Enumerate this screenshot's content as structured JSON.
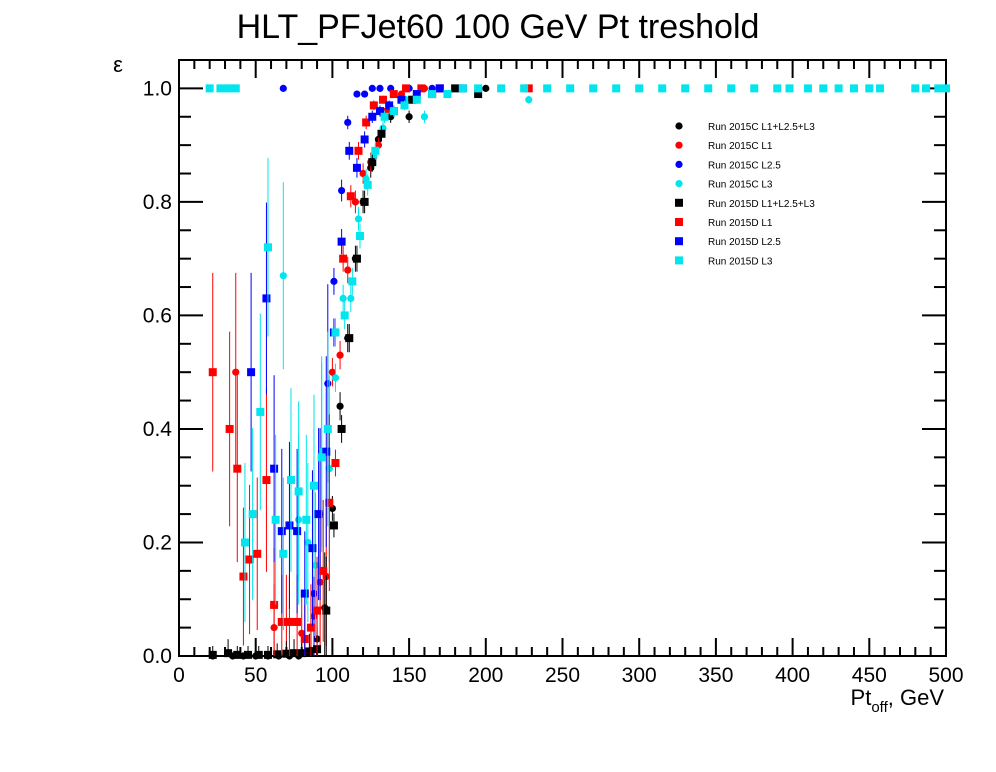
{
  "chart_data": {
    "type": "scatter",
    "title": "HLT_PFJet60 100 GeV Pt treshold",
    "xlabel": {
      "main": "Pt",
      "sub": "off",
      "rest": ", GeV"
    },
    "ylabel": "ε",
    "xlim": [
      0,
      500
    ],
    "ylim": [
      0,
      1.05
    ],
    "xticks": [
      0,
      50,
      100,
      150,
      200,
      250,
      300,
      350,
      400,
      450,
      500
    ],
    "yticks": [
      0,
      0.2,
      0.4,
      0.6,
      0.8,
      1.0
    ],
    "xtick_labels": [
      "0",
      "50",
      "100",
      "150",
      "200",
      "250",
      "300",
      "350",
      "400",
      "450",
      "500"
    ],
    "ytick_labels": [
      "0.0",
      "0.2",
      "0.4",
      "0.6",
      "0.8",
      "1.0"
    ],
    "grid": false,
    "legend_position": "top-right",
    "series": [
      {
        "name": "Run 2015C L1+L2.5+L3",
        "color": "#000000",
        "marker": "circle",
        "points": [
          [
            22,
            0.0
          ],
          [
            35,
            0.0
          ],
          [
            42,
            0.0
          ],
          [
            50,
            0.0
          ],
          [
            58,
            0.0
          ],
          [
            65,
            0.0
          ],
          [
            72,
            0.0
          ],
          [
            78,
            0.0
          ],
          [
            82,
            0.005
          ],
          [
            86,
            0.01
          ],
          [
            90,
            0.03
          ],
          [
            95,
            0.085
          ],
          [
            100,
            0.26
          ],
          [
            105,
            0.44
          ],
          [
            110,
            0.56
          ],
          [
            115,
            0.7
          ],
          [
            120,
            0.8
          ],
          [
            125,
            0.86
          ],
          [
            130,
            0.91
          ],
          [
            138,
            0.95
          ],
          [
            150,
            0.95
          ],
          [
            165,
            0.99
          ],
          [
            180,
            1.0
          ],
          [
            200,
            1.0
          ]
        ]
      },
      {
        "name": "Run 2015C L1",
        "color": "#ff0000",
        "marker": "circle",
        "points": [
          [
            37,
            0.5
          ],
          [
            62,
            0.05
          ],
          [
            70,
            0.06
          ],
          [
            80,
            0.04
          ],
          [
            88,
            0.07
          ],
          [
            92,
            0.13
          ],
          [
            96,
            0.14
          ],
          [
            100,
            0.5
          ],
          [
            105,
            0.53
          ],
          [
            110,
            0.68
          ],
          [
            115,
            0.8
          ],
          [
            120,
            0.85
          ],
          [
            125,
            0.87
          ],
          [
            130,
            0.9
          ],
          [
            135,
            0.96
          ],
          [
            145,
            0.99
          ],
          [
            160,
            1.0
          ],
          [
            180,
            1.0
          ]
        ]
      },
      {
        "name": "Run 2015C L2.5",
        "color": "#0000ff",
        "marker": "circle",
        "points": [
          [
            68,
            1.0
          ],
          [
            88,
            0.11
          ],
          [
            92,
            0.25
          ],
          [
            97,
            0.48
          ],
          [
            101,
            0.66
          ],
          [
            106,
            0.82
          ],
          [
            110,
            0.94
          ],
          [
            116,
            0.99
          ],
          [
            121,
            0.99
          ],
          [
            126,
            1.0
          ],
          [
            131,
            1.0
          ],
          [
            138,
            1.0
          ],
          [
            150,
            1.0
          ],
          [
            165,
            1.0
          ]
        ]
      },
      {
        "name": "Run 2015C L3",
        "color": "#00e5ee",
        "marker": "circle",
        "points": [
          [
            68,
            0.67
          ],
          [
            78,
            0.24
          ],
          [
            84,
            0.2
          ],
          [
            89,
            0.16
          ],
          [
            93,
            0.36
          ],
          [
            98,
            0.33
          ],
          [
            102,
            0.49
          ],
          [
            107,
            0.63
          ],
          [
            112,
            0.63
          ],
          [
            117,
            0.77
          ],
          [
            122,
            0.84
          ],
          [
            127,
            0.88
          ],
          [
            133,
            0.93
          ],
          [
            140,
            0.96
          ],
          [
            148,
            0.98
          ],
          [
            160,
            0.95
          ],
          [
            180,
            1.0
          ],
          [
            228,
            0.98
          ]
        ]
      },
      {
        "name": "Run 2015D L1+L2.5+L3",
        "color": "#000000",
        "marker": "square",
        "points": [
          [
            22,
            0.002
          ],
          [
            32,
            0.005
          ],
          [
            38,
            0.002
          ],
          [
            45,
            0.002
          ],
          [
            52,
            0.002
          ],
          [
            58,
            0.002
          ],
          [
            64,
            0.003
          ],
          [
            70,
            0.004
          ],
          [
            75,
            0.005
          ],
          [
            80,
            0.005
          ],
          [
            85,
            0.008
          ],
          [
            90,
            0.012
          ],
          [
            96,
            0.08
          ],
          [
            101,
            0.23
          ],
          [
            106,
            0.4
          ],
          [
            111,
            0.56
          ],
          [
            116,
            0.7
          ],
          [
            121,
            0.8
          ],
          [
            126,
            0.87
          ],
          [
            132,
            0.92
          ],
          [
            140,
            0.96
          ],
          [
            152,
            0.98
          ],
          [
            165,
            0.99
          ],
          [
            180,
            1.0
          ],
          [
            195,
            0.99
          ]
        ]
      },
      {
        "name": "Run 2015D L1",
        "color": "#ff0000",
        "marker": "square",
        "points": [
          [
            22,
            0.5
          ],
          [
            33,
            0.4
          ],
          [
            38,
            0.33
          ],
          [
            42,
            0.14
          ],
          [
            46,
            0.17
          ],
          [
            51,
            0.18
          ],
          [
            57,
            0.31
          ],
          [
            62,
            0.09
          ],
          [
            67,
            0.06
          ],
          [
            72,
            0.06
          ],
          [
            77,
            0.06
          ],
          [
            82,
            0.03
          ],
          [
            86,
            0.05
          ],
          [
            90,
            0.08
          ],
          [
            94,
            0.15
          ],
          [
            98,
            0.27
          ],
          [
            102,
            0.34
          ],
          [
            107,
            0.7
          ],
          [
            112,
            0.81
          ],
          [
            117,
            0.89
          ],
          [
            122,
            0.94
          ],
          [
            127,
            0.97
          ],
          [
            133,
            0.98
          ],
          [
            140,
            0.99
          ],
          [
            148,
            1.0
          ],
          [
            158,
            1.0
          ],
          [
            170,
            1.0
          ],
          [
            228,
            1.0
          ]
        ]
      },
      {
        "name": "Run 2015D L2.5",
        "color": "#0000ff",
        "marker": "square",
        "points": [
          [
            47,
            0.5
          ],
          [
            57,
            0.63
          ],
          [
            62,
            0.33
          ],
          [
            67,
            0.22
          ],
          [
            72,
            0.23
          ],
          [
            77,
            0.22
          ],
          [
            82,
            0.11
          ],
          [
            87,
            0.19
          ],
          [
            91,
            0.25
          ],
          [
            96,
            0.36
          ],
          [
            101,
            0.57
          ],
          [
            106,
            0.73
          ],
          [
            111,
            0.89
          ],
          [
            116,
            0.86
          ],
          [
            121,
            0.91
          ],
          [
            126,
            0.95
          ],
          [
            131,
            0.96
          ],
          [
            137,
            0.97
          ],
          [
            145,
            0.98
          ],
          [
            155,
            0.99
          ],
          [
            170,
            1.0
          ],
          [
            185,
            1.0
          ]
        ]
      },
      {
        "name": "Run 2015D L3",
        "color": "#00e5ee",
        "marker": "square",
        "points": [
          [
            20,
            1.0
          ],
          [
            27,
            1.0
          ],
          [
            32,
            1.0
          ],
          [
            37,
            1.0
          ],
          [
            43,
            0.2
          ],
          [
            48,
            0.25
          ],
          [
            53,
            0.43
          ],
          [
            58,
            0.72
          ],
          [
            63,
            0.24
          ],
          [
            68,
            0.18
          ],
          [
            73,
            0.31
          ],
          [
            78,
            0.29
          ],
          [
            83,
            0.24
          ],
          [
            88,
            0.3
          ],
          [
            93,
            0.35
          ],
          [
            97,
            0.4
          ],
          [
            102,
            0.57
          ],
          [
            108,
            0.6
          ],
          [
            113,
            0.66
          ],
          [
            118,
            0.74
          ],
          [
            123,
            0.83
          ],
          [
            128,
            0.89
          ],
          [
            134,
            0.95
          ],
          [
            140,
            0.96
          ],
          [
            147,
            0.97
          ],
          [
            155,
            0.98
          ],
          [
            165,
            0.99
          ],
          [
            175,
            0.99
          ],
          [
            185,
            1.0
          ],
          [
            195,
            1.0
          ],
          [
            210,
            1.0
          ],
          [
            225,
            1.0
          ],
          [
            240,
            1.0
          ],
          [
            255,
            1.0
          ],
          [
            270,
            1.0
          ],
          [
            285,
            1.0
          ],
          [
            300,
            1.0
          ],
          [
            315,
            1.0
          ],
          [
            330,
            1.0
          ],
          [
            345,
            1.0
          ],
          [
            360,
            1.0
          ],
          [
            375,
            1.0
          ],
          [
            390,
            1.0
          ],
          [
            398,
            1.0
          ],
          [
            410,
            1.0
          ],
          [
            420,
            1.0
          ],
          [
            430,
            1.0
          ],
          [
            440,
            1.0
          ],
          [
            450,
            1.0
          ],
          [
            457,
            1.0
          ],
          [
            480,
            1.0
          ],
          [
            487,
            1.0
          ],
          [
            495,
            1.0
          ],
          [
            500,
            1.0
          ]
        ]
      }
    ]
  }
}
